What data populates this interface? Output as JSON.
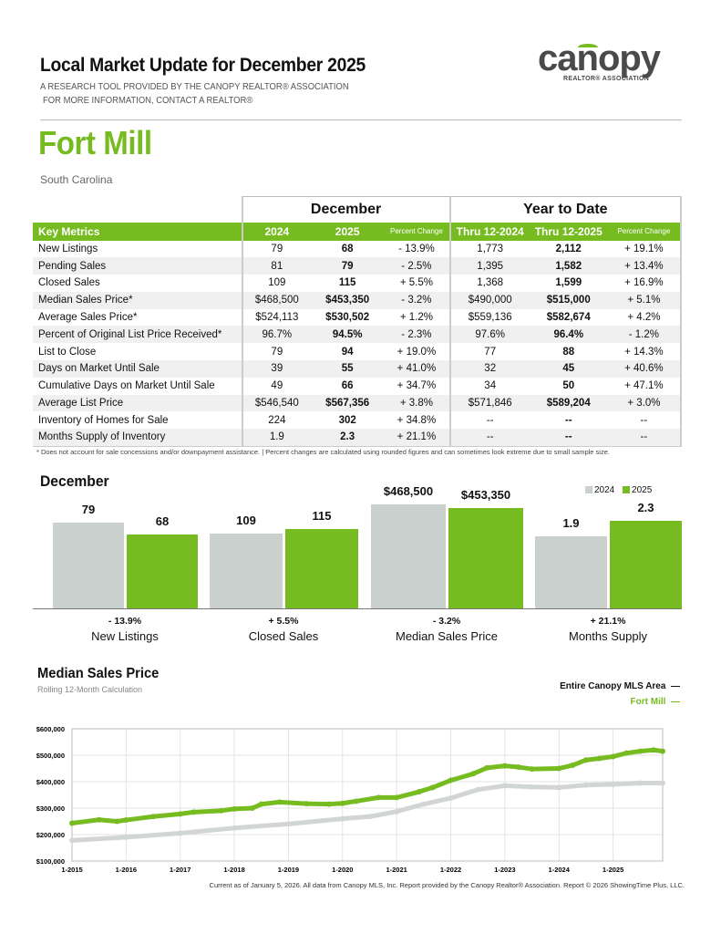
{
  "header": {
    "title": "Local Market Update for December 2025",
    "subtitle1": "A RESEARCH TOOL PROVIDED BY THE CANOPY REALTOR® ASSOCIATION",
    "subtitle2": "FOR MORE INFORMATION, CONTACT A REALTOR®",
    "logo_text": "canopy",
    "logo_sub": "REALTOR® ASSOCIATION"
  },
  "location": {
    "city": "Fort Mill",
    "state": "South Carolina"
  },
  "table": {
    "group_headers": [
      "December",
      "Year to Date"
    ],
    "columns": [
      "Key Metrics",
      "2024",
      "2025",
      "Percent Change",
      "Thru 12-2024",
      "Thru 12-2025",
      "Percent Change"
    ],
    "rows": [
      [
        "New Listings",
        "79",
        "68",
        "- 13.9%",
        "1,773",
        "2,112",
        "+ 19.1%"
      ],
      [
        "Pending Sales",
        "81",
        "79",
        "- 2.5%",
        "1,395",
        "1,582",
        "+ 13.4%"
      ],
      [
        "Closed Sales",
        "109",
        "115",
        "+ 5.5%",
        "1,368",
        "1,599",
        "+ 16.9%"
      ],
      [
        "Median Sales Price*",
        "$468,500",
        "$453,350",
        "- 3.2%",
        "$490,000",
        "$515,000",
        "+ 5.1%"
      ],
      [
        "Average Sales Price*",
        "$524,113",
        "$530,502",
        "+ 1.2%",
        "$559,136",
        "$582,674",
        "+ 4.2%"
      ],
      [
        "Percent of Original List Price Received*",
        "96.7%",
        "94.5%",
        "- 2.3%",
        "97.6%",
        "96.4%",
        "- 1.2%"
      ],
      [
        "List to Close",
        "79",
        "94",
        "+ 19.0%",
        "77",
        "88",
        "+ 14.3%"
      ],
      [
        "Days on Market Until Sale",
        "39",
        "55",
        "+ 41.0%",
        "32",
        "45",
        "+ 40.6%"
      ],
      [
        "Cumulative Days on Market Until Sale",
        "49",
        "66",
        "+ 34.7%",
        "34",
        "50",
        "+ 47.1%"
      ],
      [
        "Average List Price",
        "$546,540",
        "$567,356",
        "+ 3.8%",
        "$571,846",
        "$589,204",
        "+ 3.0%"
      ],
      [
        "Inventory of Homes for Sale",
        "224",
        "302",
        "+ 34.8%",
        "--",
        "--",
        "--"
      ],
      [
        "Months Supply of Inventory",
        "1.9",
        "2.3",
        "+ 21.1%",
        "--",
        "--",
        "--"
      ]
    ],
    "footnote": "* Does not account for sale concessions and/or downpayment assistance.  |  Percent changes are calculated using rounded figures and can sometimes look extreme due to small sample size."
  },
  "colors": {
    "accent": "#76bc21",
    "gray_bar": "#c9d0cd",
    "canopy_line": "#d2d6d3"
  },
  "chart_data": [
    {
      "type": "bar",
      "title": "December",
      "legend": [
        "2024",
        "2025"
      ],
      "legend_placement": "top-right",
      "categories": [
        "New Listings",
        "Closed Sales",
        "Median Sales Price",
        "Months Supply"
      ],
      "series": [
        {
          "name": "2024",
          "values": [
            79,
            109,
            468500,
            1.9
          ],
          "labels": [
            "79",
            "109",
            "$468,500",
            "1.9"
          ]
        },
        {
          "name": "2025",
          "values": [
            68,
            115,
            453350,
            2.3
          ],
          "labels": [
            "68",
            "115",
            "$453,350",
            "2.3"
          ]
        }
      ],
      "changes": [
        "- 13.9%",
        "+ 5.5%",
        "- 3.2%",
        "+ 21.1%"
      ]
    },
    {
      "type": "line",
      "title": "Median Sales Price",
      "subtitle": "Rolling 12-Month Calculation",
      "ylim": [
        100000,
        600000
      ],
      "yticks": [
        "$100,000",
        "$200,000",
        "$300,000",
        "$400,000",
        "$500,000",
        "$600,000"
      ],
      "xticks": [
        "1-2015",
        "1-2016",
        "1-2017",
        "1-2018",
        "1-2019",
        "1-2020",
        "1-2021",
        "1-2022",
        "1-2023",
        "1-2024",
        "1-2025"
      ],
      "grid": true,
      "legend_placement": "top-right",
      "series": [
        {
          "name": "Entire Canopy MLS Area",
          "color": "#d2d6d3",
          "points": [
            [
              "2015-01",
              178000
            ],
            [
              "2016-01",
              190000
            ],
            [
              "2017-01",
              205000
            ],
            [
              "2018-01",
              225000
            ],
            [
              "2019-01",
              240000
            ],
            [
              "2020-01",
              260000
            ],
            [
              "2020-07",
              268000
            ],
            [
              "2021-01",
              287000
            ],
            [
              "2021-07",
              315000
            ],
            [
              "2022-01",
              338000
            ],
            [
              "2022-07",
              370000
            ],
            [
              "2023-01",
              385000
            ],
            [
              "2023-07",
              380000
            ],
            [
              "2024-01",
              378000
            ],
            [
              "2024-07",
              387000
            ],
            [
              "2025-01",
              390000
            ],
            [
              "2025-07",
              395000
            ],
            [
              "2025-12",
              395000
            ]
          ]
        },
        {
          "name": "Fort Mill",
          "color": "#76bc21",
          "points": [
            [
              "2015-01",
              243000
            ],
            [
              "2015-07",
              256000
            ],
            [
              "2015-11",
              250000
            ],
            [
              "2016-01",
              255000
            ],
            [
              "2016-07",
              268000
            ],
            [
              "2017-01",
              278000
            ],
            [
              "2017-04",
              285000
            ],
            [
              "2017-10",
              290000
            ],
            [
              "2018-01",
              297000
            ],
            [
              "2018-05",
              300000
            ],
            [
              "2018-07",
              315000
            ],
            [
              "2018-11",
              323000
            ],
            [
              "2019-05",
              317000
            ],
            [
              "2019-10",
              315000
            ],
            [
              "2020-01",
              318000
            ],
            [
              "2020-04",
              326000
            ],
            [
              "2020-09",
              340000
            ],
            [
              "2021-01",
              340000
            ],
            [
              "2021-06",
              362000
            ],
            [
              "2021-09",
              378000
            ],
            [
              "2022-01",
              405000
            ],
            [
              "2022-06",
              430000
            ],
            [
              "2022-09",
              452000
            ],
            [
              "2023-01",
              460000
            ],
            [
              "2023-04",
              455000
            ],
            [
              "2023-07",
              448000
            ],
            [
              "2024-01",
              450000
            ],
            [
              "2024-04",
              462000
            ],
            [
              "2024-07",
              482000
            ],
            [
              "2024-10",
              488000
            ],
            [
              "2025-01",
              495000
            ],
            [
              "2025-04",
              508000
            ],
            [
              "2025-07",
              515000
            ],
            [
              "2025-10",
              520000
            ],
            [
              "2025-12",
              515000
            ]
          ]
        }
      ]
    }
  ],
  "credit": "Current as of January 5, 2026. All data from Canopy MLS, Inc. Report provided by the Canopy Realtor® Association. Report © 2026 ShowingTime Plus, LLC."
}
